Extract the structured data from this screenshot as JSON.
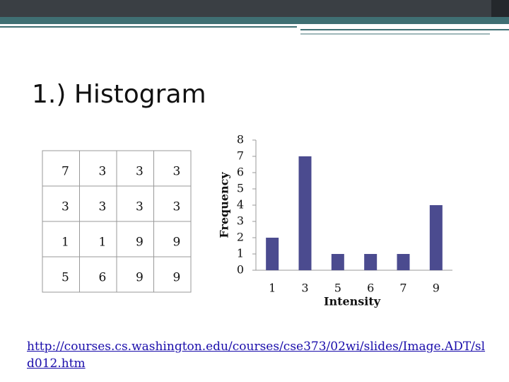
{
  "title": "1.) Histogram",
  "table": {
    "rows": [
      [
        7,
        3,
        3,
        3
      ],
      [
        3,
        3,
        3,
        3
      ],
      [
        1,
        1,
        9,
        9
      ],
      [
        5,
        6,
        9,
        9
      ]
    ]
  },
  "chart_data": {
    "type": "bar",
    "x_label": "Intensity",
    "y_label": "Frequency",
    "categories": [
      "1",
      "3",
      "5",
      "6",
      "7",
      "9"
    ],
    "values": [
      2,
      7,
      1,
      1,
      1,
      4
    ],
    "color": "#4b4b8f",
    "ylim": [
      0,
      8
    ],
    "yticks": [
      0,
      1,
      2,
      3,
      4,
      5,
      6,
      7,
      8
    ],
    "grid": false
  },
  "footer": {
    "link": "http://courses.cs.washington.edu/courses/cse373/02wi/slides/Image.ADT/sld012.htm"
  }
}
